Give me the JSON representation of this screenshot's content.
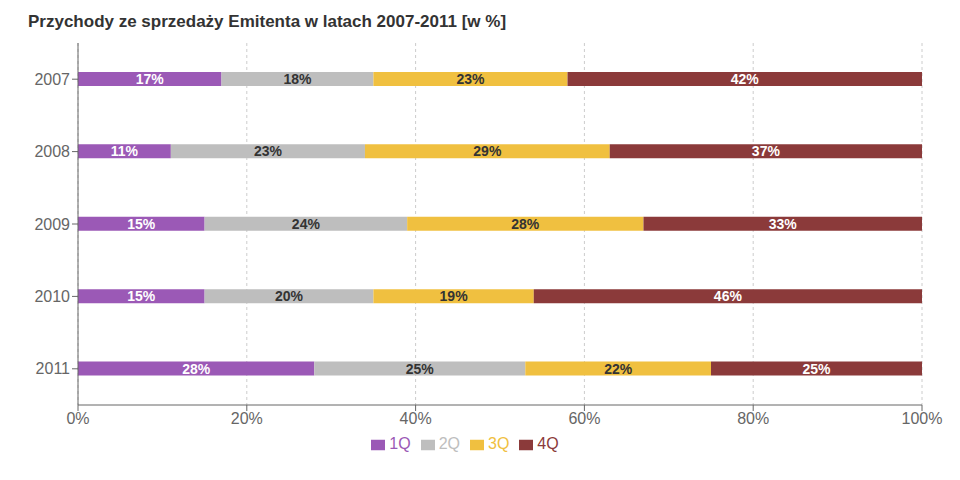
{
  "chart_data": {
    "type": "bar",
    "orientation": "horizontal",
    "stacked": true,
    "title": "Przychody ze sprzedaży Emitenta w latach 2007-2011 [w %]",
    "categories": [
      "2011",
      "2010",
      "2009",
      "2008",
      "2007"
    ],
    "series": [
      {
        "name": "1Q",
        "color": "#9B59B6",
        "values": [
          28,
          15,
          15,
          11,
          17
        ],
        "value_labels": [
          "28%",
          "15%",
          "15%",
          "11%",
          "17%"
        ]
      },
      {
        "name": "2Q",
        "color": "#BEBEBE",
        "values": [
          25,
          20,
          24,
          23,
          18
        ],
        "value_labels": [
          "25%",
          "20%",
          "24%",
          "23%",
          "18%"
        ]
      },
      {
        "name": "3Q",
        "color": "#F0C040",
        "values": [
          22,
          19,
          28,
          29,
          23
        ],
        "value_labels": [
          "22%",
          "19%",
          "28%",
          "29%",
          "23%"
        ]
      },
      {
        "name": "4Q",
        "color": "#8B3A3A",
        "values": [
          25,
          46,
          33,
          37,
          42
        ],
        "value_labels": [
          "25%",
          "46%",
          "33%",
          "37%",
          "42%"
        ]
      }
    ],
    "xlim": [
      0,
      100
    ],
    "xticks": [
      {
        "value": 0,
        "label": "0%"
      },
      {
        "value": 20,
        "label": "20%"
      },
      {
        "value": 40,
        "label": "40%"
      },
      {
        "value": 60,
        "label": "60%"
      },
      {
        "value": 80,
        "label": "80%"
      },
      {
        "value": 100,
        "label": "100%"
      }
    ],
    "grid": true,
    "legend": "bottom",
    "data_labels": true
  }
}
